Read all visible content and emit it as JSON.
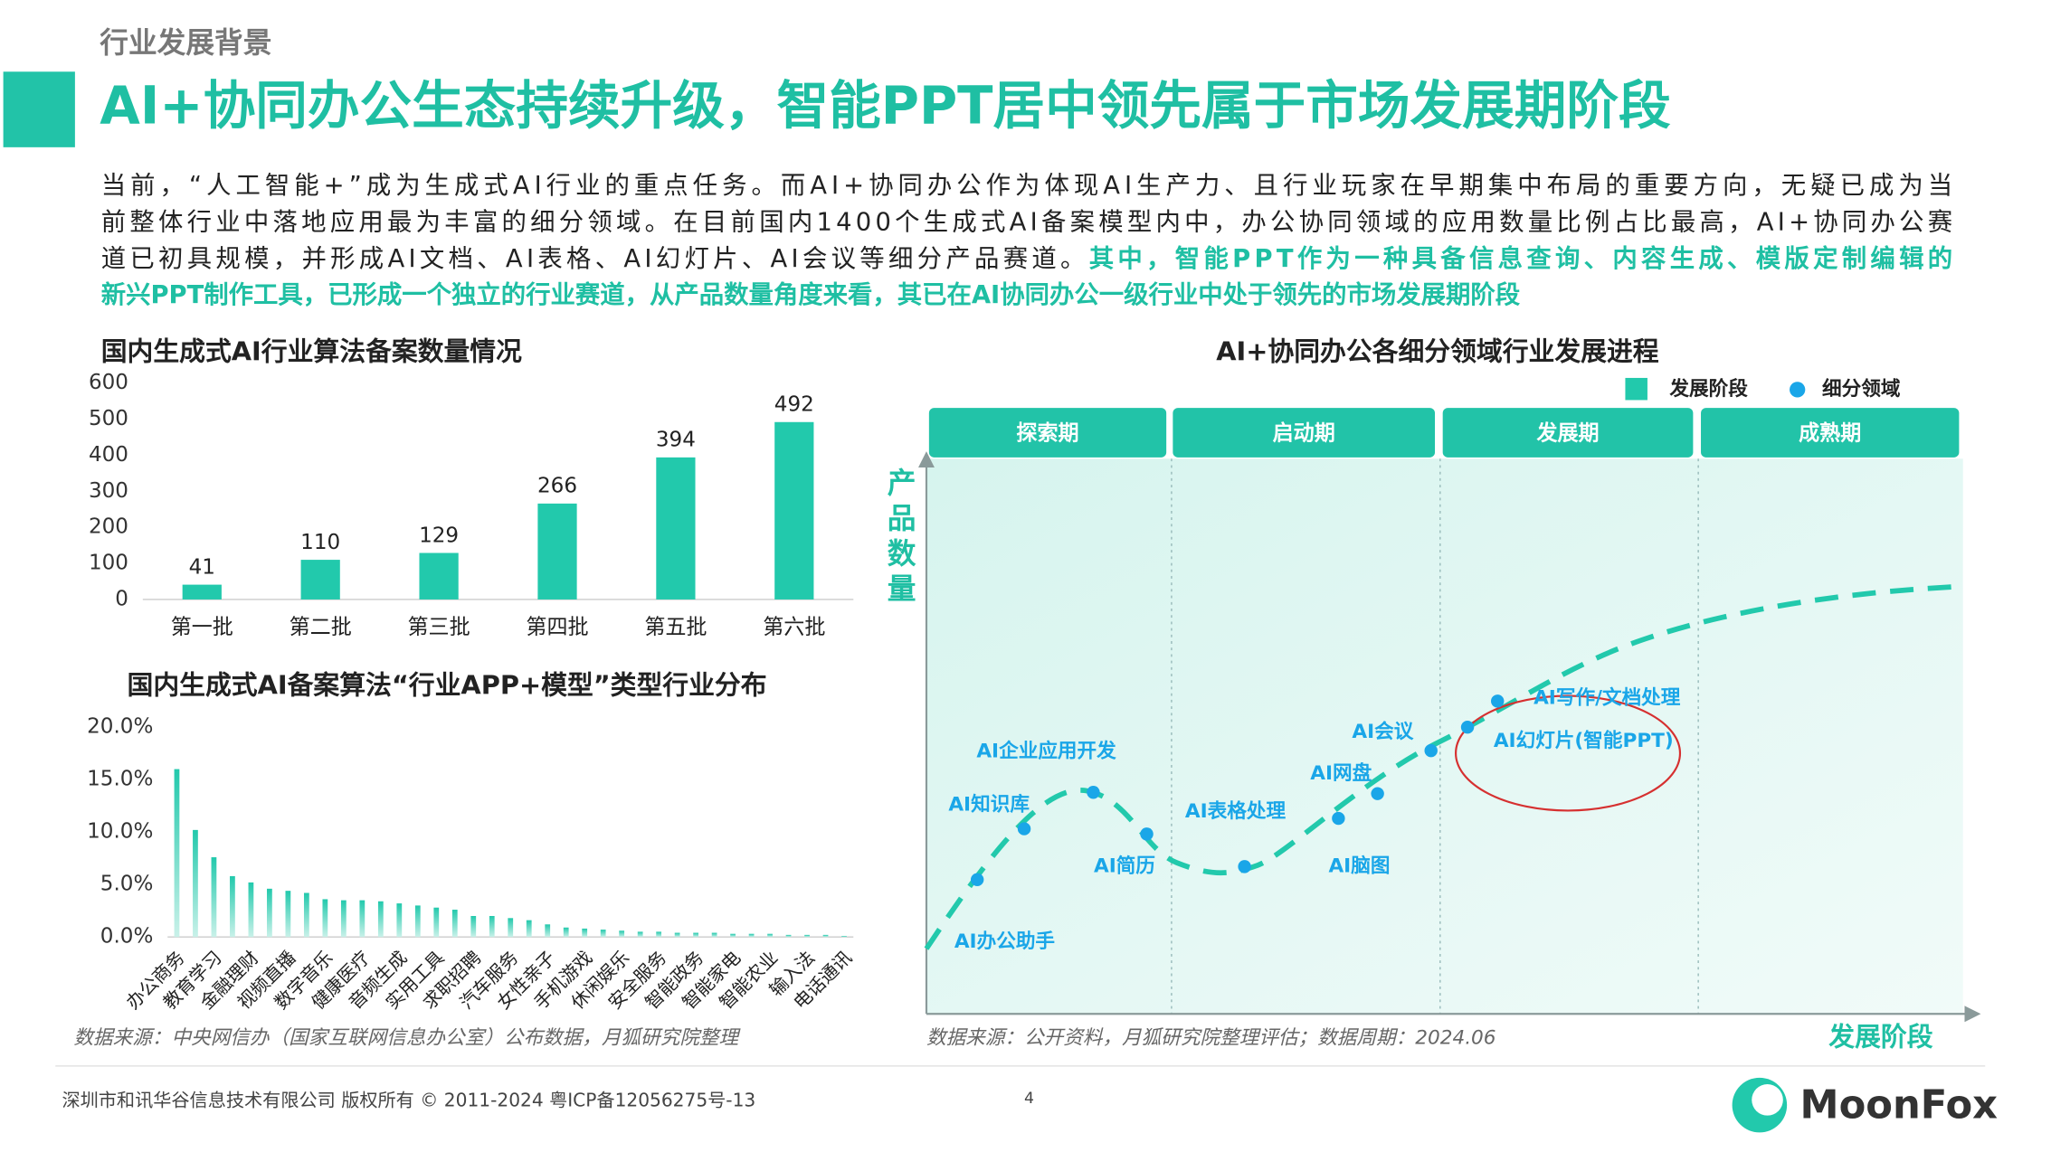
{
  "header": {
    "section": "行业发展背景",
    "title": "AI+协同办公生态持续升级，智能PPT居中领先属于市场发展期阶段"
  },
  "intro": {
    "lines": [
      [
        {
          "text": "当前，“人工智能+”成为生成式AI行业的重点任务。而AI+协同办公作为体现AI生产力、且行业玩家在早期集中布局的重要方向，无疑已成为当"
        }
      ],
      [
        {
          "text": "前整体行业中落地应用最为丰富的细分领域。在目前国内1400个生成式AI备案模型内中，办公协同领域的应用数量比例占比最高，AI+协同办公赛"
        }
      ],
      [
        {
          "text": "道已初具规模，并形成AI文档、AI表格、AI幻灯片、AI会议等细分产品赛道。"
        },
        {
          "text": "其中，智能PPT作为一种具备信息查询、内容生成、模版定制编辑的",
          "highlight": true
        }
      ],
      [
        {
          "text": "新兴PPT制作工具，已形成一个独立的行业赛道，从产品数量角度来看，其已在AI协同办公一级行业中处于领先的市场发展期阶段",
          "highlight": true
        }
      ]
    ]
  },
  "chart_data": [
    {
      "type": "bar",
      "title": "国内生成式AI行业算法备案数量情况",
      "categories": [
        "第一批",
        "第二批",
        "第三批",
        "第四批",
        "第五批",
        "第六批"
      ],
      "values": [
        41,
        110,
        129,
        266,
        394,
        492
      ],
      "color": "#22c9ac",
      "ylim": [
        0,
        600
      ],
      "yticks": [
        0,
        100,
        200,
        300,
        400,
        500,
        600
      ],
      "grid": false,
      "show_values": true
    },
    {
      "type": "bar",
      "title": "国内生成式AI备案算法“行业APP+模型”类型行业分布",
      "categories": [
        "办公商务",
        null,
        "教育学习",
        null,
        "金融理财",
        null,
        "视频直播",
        null,
        "数字音乐",
        null,
        "健康医疗",
        null,
        "音频生成",
        null,
        "实用工具",
        null,
        "求职招聘",
        null,
        "汽车服务",
        null,
        "女性亲子",
        null,
        "手机游戏",
        null,
        "休闲娱乐",
        null,
        "安全服务",
        null,
        "智能政务",
        null,
        "智能家电",
        null,
        "智能农业",
        null,
        "输入法",
        null,
        "电话通讯"
      ],
      "values": [
        16.0,
        10.2,
        7.6,
        5.8,
        5.2,
        4.6,
        4.4,
        4.2,
        3.6,
        3.5,
        3.5,
        3.4,
        3.2,
        3.0,
        2.8,
        2.6,
        2.0,
        2.0,
        1.8,
        1.6,
        1.2,
        0.9,
        0.8,
        0.7,
        0.6,
        0.5,
        0.5,
        0.4,
        0.4,
        0.4,
        0.3,
        0.3,
        0.3,
        0.2,
        0.2,
        0.2,
        0.1
      ],
      "color": "#22c9ac",
      "ylim": [
        0,
        20
      ],
      "yticks": [
        {
          "value": 0,
          "label": "0.0%"
        },
        {
          "value": 5,
          "label": "5.0%"
        },
        {
          "value": 10,
          "label": "10.0%"
        },
        {
          "value": 15,
          "label": "15.0%"
        },
        {
          "value": 20,
          "label": "20.0%"
        }
      ],
      "grid": false,
      "show_values": false,
      "source": "数据来源：中央网信办（国家互联网信息办公室）公布数据，月狐研究院整理"
    }
  ],
  "diagram": {
    "title": "AI+协同办公各细分领域行业发展进程",
    "legend": [
      "发展阶段",
      "细分领域"
    ],
    "stages": [
      "探索期",
      "启动期",
      "发展期",
      "成熟期"
    ],
    "y_axis": "产品数量",
    "x_axis": "发展阶段",
    "nodes": [
      "AI办公助手",
      "AI知识库",
      "AI企业应用开发",
      "AI简历",
      "AI表格处理",
      "AI脑图",
      "AI网盘",
      "AI会议",
      "AI幻灯片(智能PPT)",
      "AI写作/文档处理"
    ],
    "source": "数据来源：公开资料，月狐研究院整理评估；数据周期：2024.06"
  },
  "footer": {
    "copyright": "深圳市和讯华谷信息技术有限公司 版权所有 © 2011-2024 粤ICP备12056275号-13",
    "page": "4",
    "logo": "MoonFox"
  }
}
